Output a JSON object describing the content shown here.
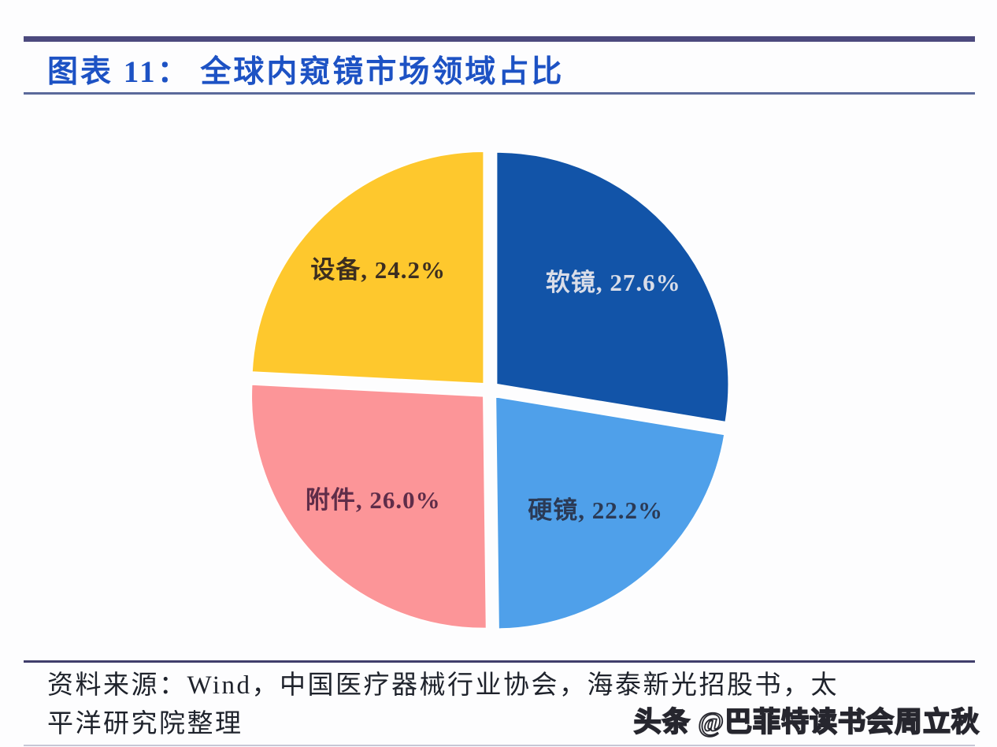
{
  "page": {
    "title": "图表 11： 全球内窥镜市场领域占比",
    "source_line1": "资料来源：Wind，中国医疗器械行业协会，海泰新光招股书，太",
    "source_line2": "平洋研究院整理",
    "watermark": "头条 @巴菲特读书会周立秋"
  },
  "colors": {
    "title": "#1D52C4",
    "rule_top": "#4C4A7E",
    "rule_under_title": "#5B6A9B",
    "rule_above_source": "#403E6B",
    "rule_bottom_edge": "#C7C7D6",
    "source_text": "#1E222B",
    "background": "#FDFDFE"
  },
  "chart_data": {
    "type": "pie",
    "title": "全球内窥镜市场领域占比",
    "legend_position": "none",
    "labels_inside": true,
    "label_format": "{label}, {value}%",
    "start_angle_deg": 0,
    "direction": "clockwise",
    "exploded": true,
    "slices": [
      {
        "label": "软镜",
        "value": 27.6,
        "display": "27.6%",
        "color": "#1254A8",
        "label_color": "#D9DDE8"
      },
      {
        "label": "硬镜",
        "value": 22.2,
        "display": "22.2%",
        "color": "#4FA0EA",
        "label_color": "#2B3A55"
      },
      {
        "label": "附件",
        "value": 26.0,
        "display": "26.0%",
        "color": "#FC9598",
        "label_color": "#5F2D49"
      },
      {
        "label": "设备",
        "value": 24.2,
        "display": "24.2%",
        "color": "#FEC82D",
        "label_color": "#3C2E20"
      }
    ]
  }
}
